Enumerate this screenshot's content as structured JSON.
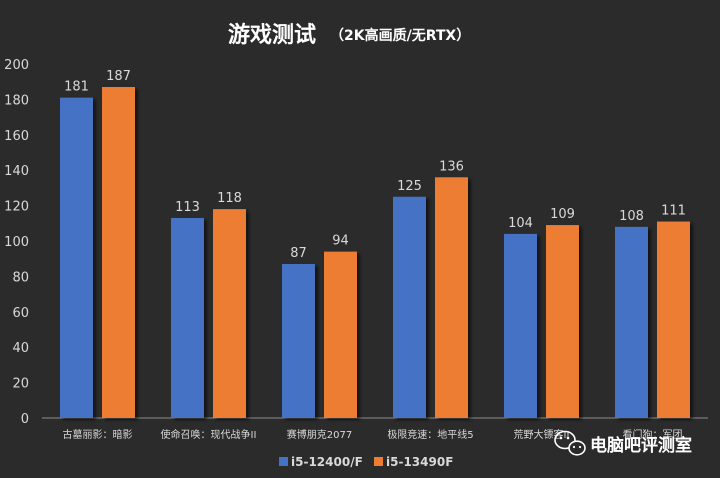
{
  "chart_data": {
    "type": "bar",
    "title": "游戏测试",
    "subtitle": "（2K高画质/无RTX）",
    "categories": [
      "古墓丽影：暗影",
      "使命召唤：现代战争II",
      "赛博朋克2077",
      "极限竞速：地平线5",
      "荒野大镖客II",
      "看门狗：军团"
    ],
    "series": [
      {
        "name": "i5-12400/F",
        "color": "#4472c4",
        "values": [
          181,
          113,
          87,
          125,
          104,
          108
        ]
      },
      {
        "name": "i5-13490F",
        "color": "#ed7d31",
        "values": [
          187,
          118,
          94,
          136,
          109,
          111
        ]
      }
    ],
    "ylim": [
      0,
      200
    ],
    "yticks": [
      0,
      20,
      40,
      60,
      80,
      100,
      120,
      140,
      160,
      180,
      200
    ],
    "grid": false,
    "legend": "bottom"
  },
  "watermark": {
    "text": "电脑吧评测室",
    "icon": "wechat-icon"
  },
  "colors": {
    "background": "#2b2b2b",
    "axis": "#8c8c8c",
    "text": "#d9d9d9"
  }
}
